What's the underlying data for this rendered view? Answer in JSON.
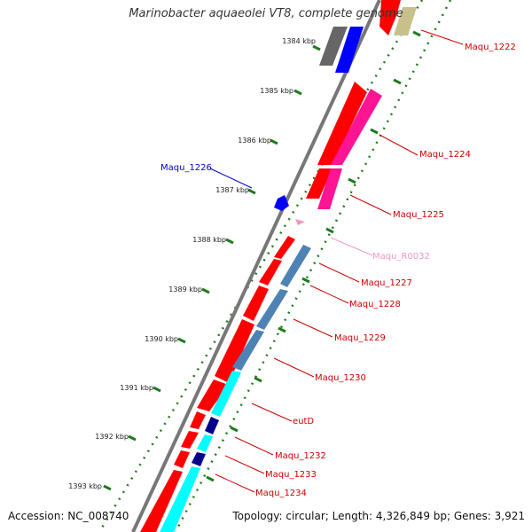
{
  "title": "Marinobacter aquaeolei VT8, complete genome",
  "footer": {
    "accession": "Accession: NC_008740",
    "topology": "Topology: circular; Length: 4,326,849 bp; Genes: 3,921"
  },
  "colors": {
    "red": "#ff0000",
    "magenta": "#ff1493",
    "blue": "#0000ff",
    "grey": "#666666",
    "khaki": "#c8c08a",
    "steel_blue": "#4f82b4",
    "cyan": "#00ffff",
    "navy": "#00008b",
    "pink_rna": "#ee99c0",
    "tick_green": "#1f7a1f"
  },
  "kbp_ticks": [
    "1384 kbp",
    "1385 kbp",
    "1386 kbp",
    "1387 kbp",
    "1388 kbp",
    "1389 kbp",
    "1390 kbp",
    "1391 kbp",
    "1392 kbp",
    "1393 kbp"
  ],
  "gene_labels": [
    {
      "text": "Maqu_1222",
      "color": "#cc0000"
    },
    {
      "text": "Maqu_1224",
      "color": "#cc0000"
    },
    {
      "text": "Maqu_1225",
      "color": "#cc0000"
    },
    {
      "text": "Maqu_1226",
      "color": "#0000cc"
    },
    {
      "text": "Maqu_R0032",
      "color": "#ee99c0"
    },
    {
      "text": "Maqu_1227",
      "color": "#cc0000"
    },
    {
      "text": "Maqu_1228",
      "color": "#cc0000"
    },
    {
      "text": "Maqu_1229",
      "color": "#cc0000"
    },
    {
      "text": "Maqu_1230",
      "color": "#cc0000"
    },
    {
      "text": "eutD",
      "color": "#cc0000"
    },
    {
      "text": "Maqu_1232",
      "color": "#cc0000"
    },
    {
      "text": "Maqu_1233",
      "color": "#cc0000"
    },
    {
      "text": "Maqu_1234",
      "color": "#cc0000"
    }
  ]
}
